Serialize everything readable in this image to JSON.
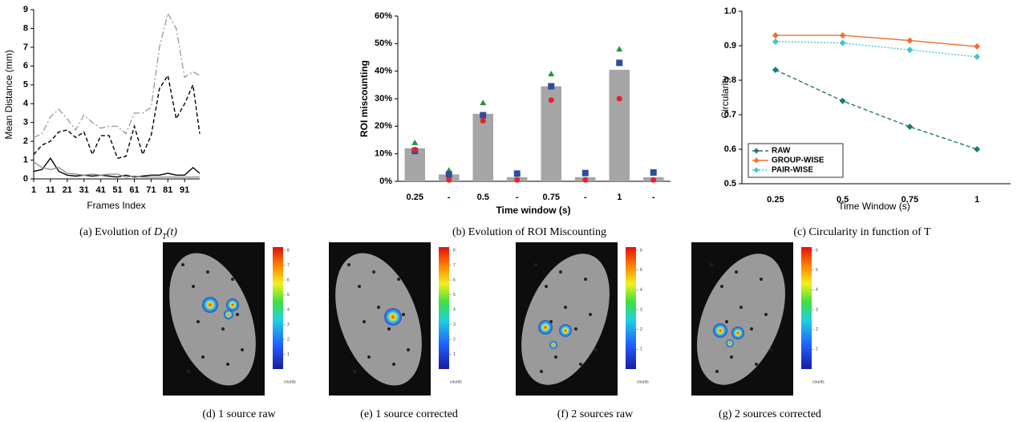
{
  "chart_data": [
    {
      "type": "line",
      "caption": [
        "(a)  Evolution of ",
        "D",
        "T",
        "(t)"
      ],
      "x_label": "Frames Index",
      "y_label": "Mean Distance (mm)",
      "x": [
        1,
        6,
        11,
        16,
        21,
        26,
        31,
        36,
        41,
        46,
        51,
        56,
        61,
        66,
        71,
        76,
        81,
        86,
        91,
        96,
        100
      ],
      "xlim": [
        1,
        100
      ],
      "xticks": [
        1,
        11,
        21,
        31,
        41,
        51,
        61,
        71,
        81,
        91
      ],
      "ylim": [
        0,
        9
      ],
      "yticks": [
        0,
        1,
        2,
        3,
        4,
        5,
        6,
        7,
        8,
        9
      ],
      "series": [
        {
          "color": "#a0a0a0",
          "dash": "dashdot",
          "values": [
            2.2,
            2.4,
            3.3,
            3.7,
            3.2,
            2.6,
            3.4,
            3.0,
            2.7,
            2.8,
            2.8,
            2.4,
            3.5,
            3.5,
            3.8,
            7.0,
            8.8,
            8.0,
            5.4,
            5.7,
            5.5
          ]
        },
        {
          "color": "#000000",
          "dash": "dash",
          "values": [
            1.3,
            1.8,
            2.0,
            2.5,
            2.6,
            2.2,
            2.5,
            1.3,
            2.3,
            2.3,
            1.1,
            1.2,
            2.8,
            1.3,
            2.3,
            4.8,
            5.5,
            3.2,
            4.0,
            5.0,
            2.4
          ]
        },
        {
          "color": "#000000",
          "dash": "solid",
          "values": [
            0.4,
            0.5,
            1.1,
            0.4,
            0.2,
            0.15,
            0.2,
            0.15,
            0.2,
            0.15,
            0.1,
            0.2,
            0.1,
            0.15,
            0.2,
            0.2,
            0.3,
            0.2,
            0.2,
            0.6,
            0.3
          ]
        },
        {
          "color": "#909090",
          "dash": "solid",
          "values": [
            0.9,
            0.6,
            0.5,
            0.6,
            0.3,
            0.25,
            0.2,
            0.25,
            0.2,
            0.25,
            0.25,
            0.1,
            0.15,
            0.1,
            0.1,
            0.1,
            0.1,
            0.1,
            0.1,
            0.1,
            0.1
          ]
        }
      ]
    },
    {
      "type": "bar",
      "caption": "(b)  Evolution of ROI Miscounting",
      "x_label": "Time window (s)",
      "y_label": "ROI miscounting",
      "categories": [
        "0.25",
        "-",
        "0.5",
        "-",
        "0.75",
        "-",
        "1",
        "-"
      ],
      "ylim": [
        0,
        60
      ],
      "yticks": [
        {
          "value": 0,
          "label": "0%"
        },
        {
          "value": 10,
          "label": "10%"
        },
        {
          "value": 20,
          "label": "20%"
        },
        {
          "value": 30,
          "label": "30%"
        },
        {
          "value": 40,
          "label": "40%"
        },
        {
          "value": 50,
          "label": "50%"
        },
        {
          "value": 60,
          "label": "60%"
        }
      ],
      "series": [
        {
          "type": "bar",
          "color": "#a6a6a6",
          "values": [
            12,
            2.5,
            24.5,
            1.5,
            34.5,
            1.5,
            40.5,
            1.5
          ]
        },
        {
          "type": "scatter",
          "marker": "triangle",
          "color": "#1a9a3a",
          "values": [
            14,
            4,
            28.5,
            null,
            39,
            null,
            48,
            null
          ]
        },
        {
          "type": "scatter",
          "marker": "square",
          "color": "#2e4d9a",
          "values": [
            11,
            2.5,
            24,
            2.8,
            34.5,
            3,
            43,
            3.2
          ]
        },
        {
          "type": "scatter",
          "marker": "circle",
          "color": "#e8202a",
          "values": [
            11.5,
            0.5,
            22,
            0.5,
            29.5,
            0.5,
            30,
            0.5
          ]
        }
      ]
    },
    {
      "type": "line",
      "caption": "(c)  Circularity in function of T",
      "x_label": "Time Window (s)",
      "y_label": "Circularity",
      "categories": [
        "0.25",
        "0.5",
        "0.75",
        "1"
      ],
      "ylim": [
        0.5,
        1.0
      ],
      "yticks": [
        0.5,
        0.6,
        0.7,
        0.8,
        0.9,
        {
          "value": 1.0,
          "label": "1.0"
        }
      ],
      "legend": "lower-left",
      "series": [
        {
          "name": "RAW",
          "color": "#1a7a75",
          "dash": "dash",
          "marker": "diamond",
          "values": [
            0.83,
            0.74,
            0.665,
            0.6
          ]
        },
        {
          "name": "GROUP-WISE",
          "color": "#f07030",
          "dash": "solid",
          "marker": "diamond",
          "values": [
            0.93,
            0.93,
            0.915,
            0.898
          ]
        },
        {
          "name": "PAIR-WISE",
          "color": "#40c8c8",
          "dash": "dot",
          "marker": "diamond",
          "values": [
            0.912,
            0.908,
            0.888,
            0.868
          ]
        }
      ]
    }
  ],
  "images": [
    {
      "caption": "(d)  1 source raw",
      "colorbar_ticks": [
        1,
        2,
        3,
        4,
        5,
        6,
        7,
        8
      ],
      "colorbar_label": "counts"
    },
    {
      "caption": "(e)  1 source corrected",
      "colorbar_ticks": [
        1,
        2,
        3,
        4,
        5,
        6,
        7,
        8
      ],
      "colorbar_label": "counts"
    },
    {
      "caption": "(f)  2 sources raw",
      "colorbar_ticks": [
        1,
        2,
        3,
        4,
        5,
        6
      ],
      "colorbar_label": "counts"
    },
    {
      "caption": "(g)  2 sources corrected",
      "colorbar_ticks": [
        1,
        2,
        3,
        4,
        5,
        6
      ],
      "colorbar_label": "counts"
    }
  ]
}
